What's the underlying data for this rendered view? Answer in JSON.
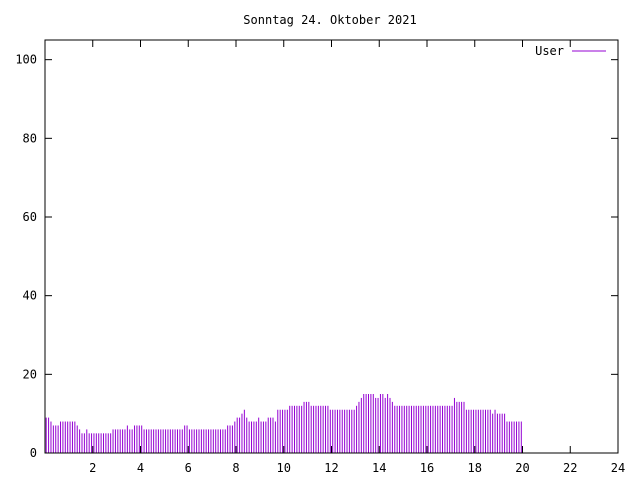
{
  "chart_data": {
    "type": "bar",
    "title": "Sonntag 24. Oktober 2021",
    "xlim": [
      0,
      24
    ],
    "ylim": [
      0,
      105
    ],
    "xticks": [
      2,
      4,
      6,
      8,
      10,
      12,
      14,
      16,
      18,
      20,
      22,
      24
    ],
    "yticks": [
      0,
      20,
      40,
      60,
      80,
      100
    ],
    "legend": {
      "position": "top-right"
    },
    "colors": {
      "series": "#9400d3",
      "axis": "#000000",
      "background": "#ffffff"
    },
    "series": [
      {
        "name": "User",
        "interval_hours": 0.1,
        "values": [
          9,
          9,
          8,
          7,
          7,
          7,
          8,
          8,
          8,
          8,
          8,
          8,
          8,
          7,
          6,
          5,
          5,
          6,
          5,
          5,
          5,
          5,
          5,
          5,
          5,
          5,
          5,
          5,
          6,
          6,
          6,
          6,
          6,
          6,
          7,
          6,
          6,
          7,
          7,
          7,
          7,
          6,
          6,
          6,
          6,
          6,
          6,
          6,
          6,
          6,
          6,
          6,
          6,
          6,
          6,
          6,
          6,
          6,
          7,
          7,
          6,
          6,
          6,
          6,
          6,
          6,
          6,
          6,
          6,
          6,
          6,
          6,
          6,
          6,
          6,
          6,
          7,
          7,
          7,
          8,
          9,
          9,
          10,
          11,
          9,
          8,
          8,
          8,
          8,
          9,
          8,
          8,
          8,
          9,
          9,
          9,
          8,
          11,
          11,
          11,
          11,
          11,
          12,
          12,
          12,
          12,
          12,
          12,
          13,
          13,
          13,
          12,
          12,
          12,
          12,
          12,
          12,
          12,
          12,
          11,
          11,
          11,
          11,
          11,
          11,
          11,
          11,
          11,
          11,
          11,
          12,
          13,
          14,
          15,
          15,
          15,
          15,
          15,
          14,
          14,
          15,
          15,
          14,
          15,
          14,
          13,
          12,
          12,
          12,
          12,
          12,
          12,
          12,
          12,
          12,
          12,
          12,
          12,
          12,
          12,
          12,
          12,
          12,
          12,
          12,
          12,
          12,
          12,
          12,
          12,
          12,
          14,
          13,
          13,
          13,
          13,
          11,
          11,
          11,
          11,
          11,
          11,
          11,
          11,
          11,
          11,
          11,
          10,
          11,
          10,
          10,
          10,
          10,
          8,
          8,
          8,
          8,
          8,
          8,
          8
        ]
      }
    ]
  }
}
